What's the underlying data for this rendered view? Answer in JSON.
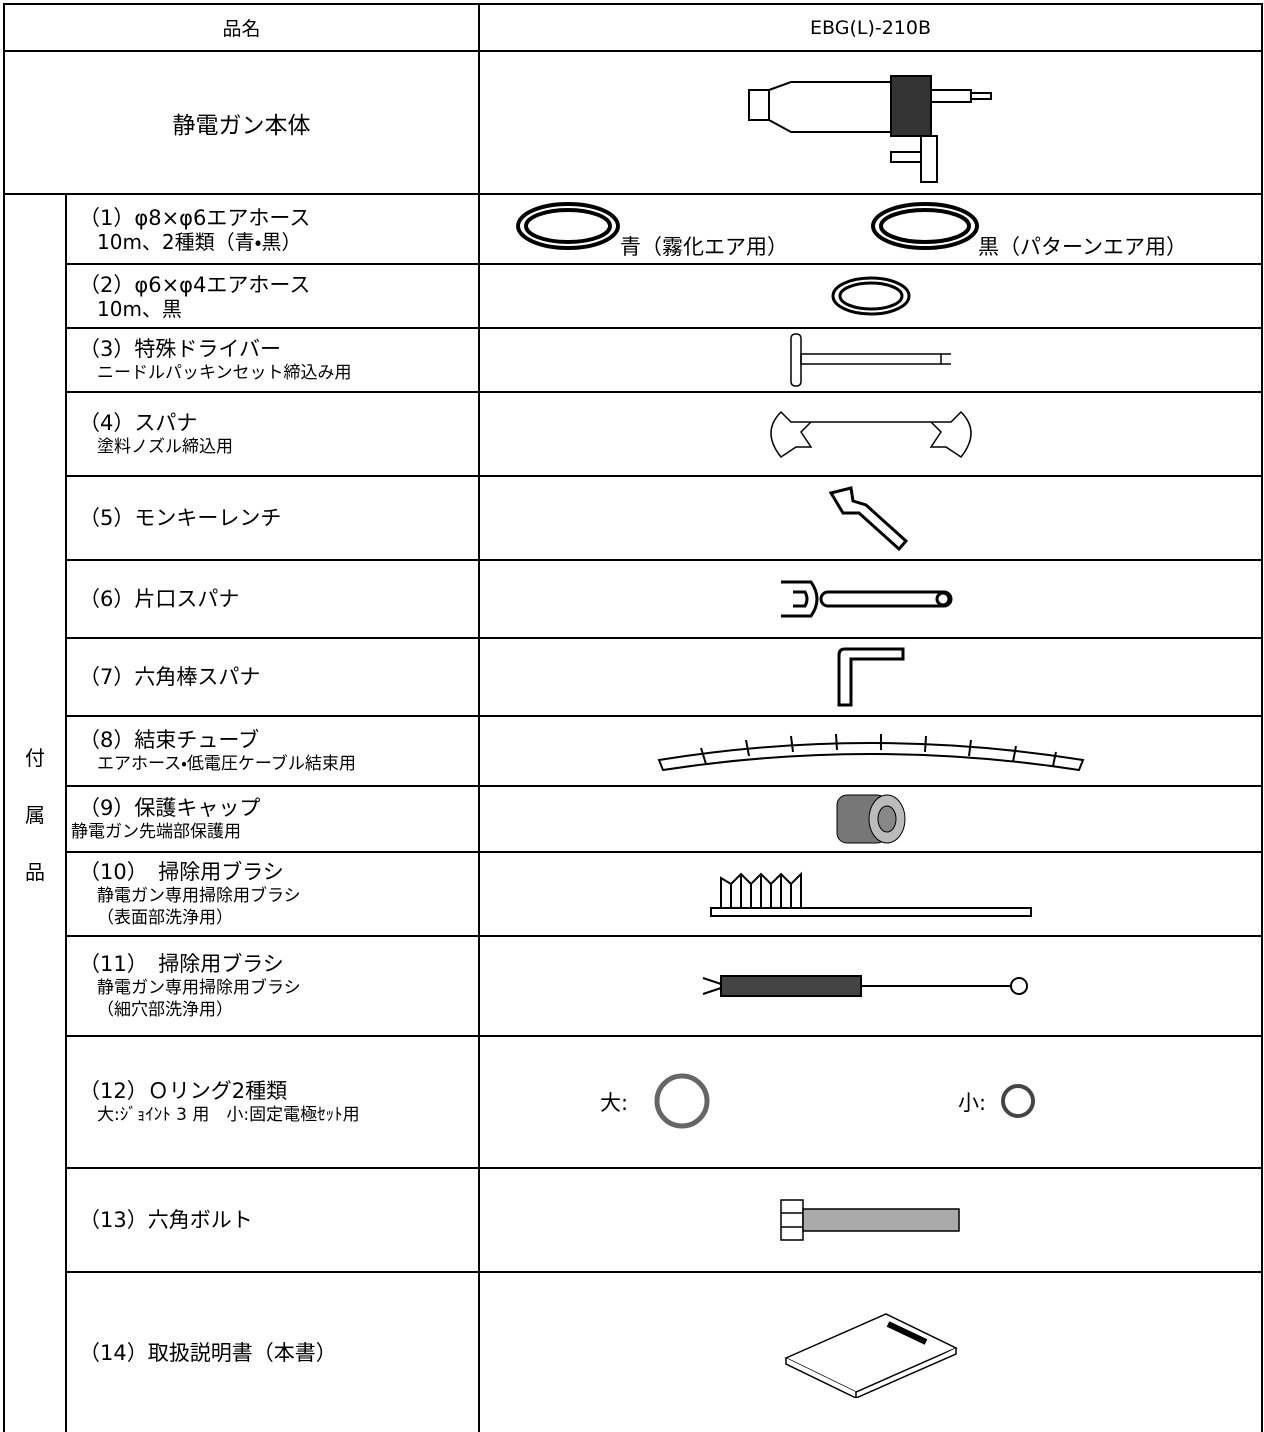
{
  "header": {
    "name_label": "品名",
    "model": "EBG(L)-210B"
  },
  "body": {
    "label": "静電ガン本体"
  },
  "side_label": [
    "付",
    "属",
    "品"
  ],
  "items": [
    {
      "title": "（1）φ8×φ6エアホース",
      "lines": [
        "10m、2種類（青・黒）"
      ],
      "captions": [
        "青（霧化エア用）",
        "黒（パターンエア用）"
      ]
    },
    {
      "title": "（2）φ6×φ4エアホース",
      "lines": [
        "10m、黒"
      ]
    },
    {
      "title": "（3）特殊ドライバー",
      "lines": [
        "ニードルパッキンセット締込み用"
      ]
    },
    {
      "title": "（4）スパナ",
      "lines": [
        "塗料ノズル締込用"
      ]
    },
    {
      "title": "（5）モンキーレンチ"
    },
    {
      "title": "（6）片口スパナ"
    },
    {
      "title": "（7）六角棒スパナ"
    },
    {
      "title": "（8）結束チューブ",
      "lines": [
        "エアホース・低電圧ケーブル結束用"
      ]
    },
    {
      "title": "（9）保護キャップ",
      "lines": [
        "静電ガン先端部保護用"
      ]
    },
    {
      "title": "（10）　掃除用ブラシ",
      "lines": [
        "静電ガン専用掃除用ブラシ",
        "（表面部洗浄用）"
      ]
    },
    {
      "title": "（11）　掃除用ブラシ",
      "lines": [
        "静電ガン専用掃除用ブラシ",
        "（細穴部洗浄用）"
      ]
    },
    {
      "title": "（12）Ｏリング2種類",
      "lines": [
        "大:ｼﾞｮｲﾝﾄ 3 用　小:固定電極ｾｯﾄ用"
      ],
      "captions": [
        "大:",
        "小:"
      ]
    },
    {
      "title": "（13）六角ボルト"
    },
    {
      "title": "（14）取扱説明書（本書）"
    }
  ]
}
